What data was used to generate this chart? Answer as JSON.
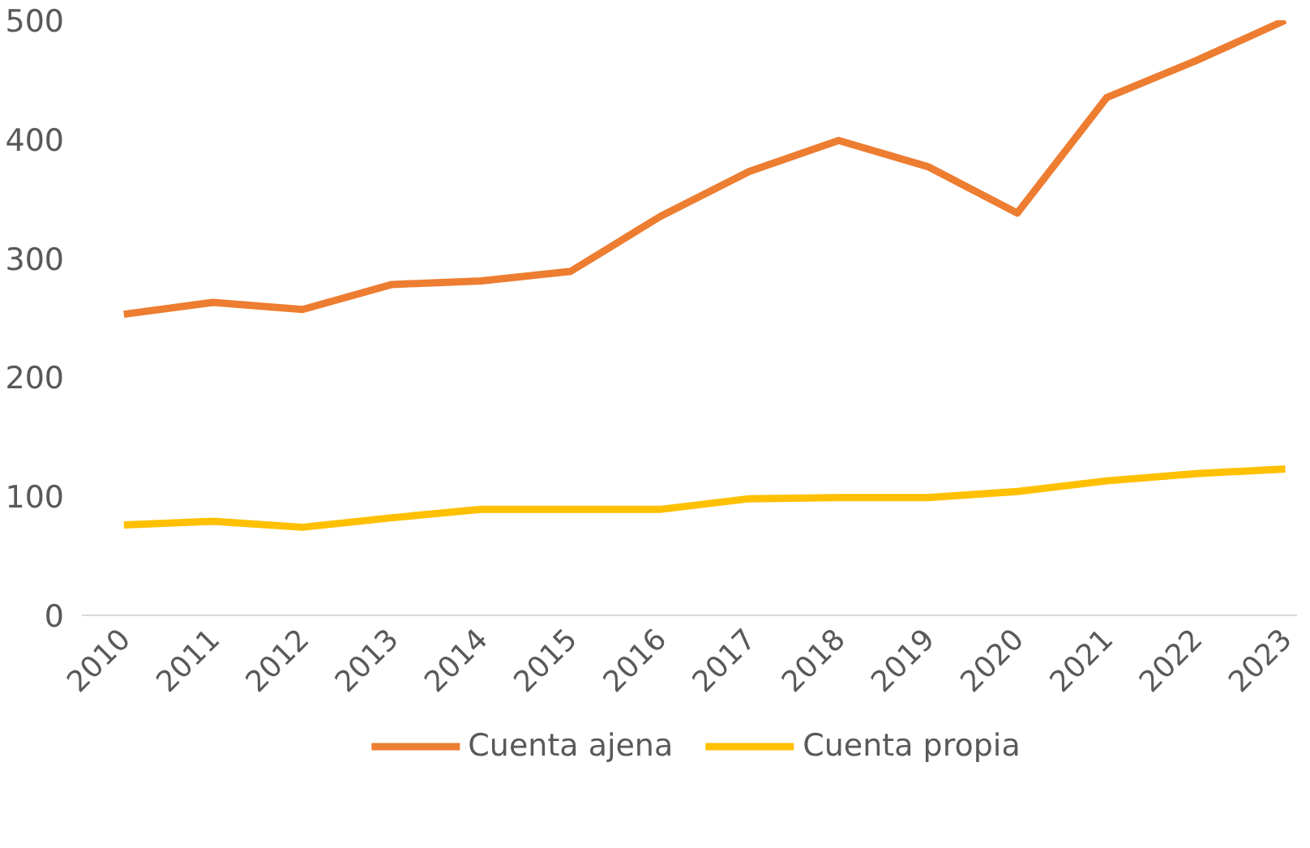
{
  "chart_data": {
    "type": "line",
    "categories": [
      "2010",
      "2011",
      "2012",
      "2013",
      "2014",
      "2015",
      "2016",
      "2017",
      "2018",
      "2019",
      "2020",
      "2021",
      "2022",
      "2023"
    ],
    "series": [
      {
        "name": "Cuenta ajena",
        "color": "#ed7d31",
        "values": [
          253,
          263,
          257,
          278,
          281,
          289,
          335,
          373,
          399,
          377,
          338,
          435,
          466,
          500
        ]
      },
      {
        "name": "Cuenta propia",
        "color": "#ffc000",
        "values": [
          76,
          79,
          74,
          82,
          89,
          89,
          89,
          98,
          99,
          99,
          104,
          113,
          119,
          123
        ]
      }
    ],
    "ylim": [
      0,
      500
    ],
    "yticks": [
      0,
      100,
      200,
      300,
      400,
      500
    ],
    "grid": false,
    "legend": "bottom",
    "marker": "none",
    "line_style": "solid"
  }
}
